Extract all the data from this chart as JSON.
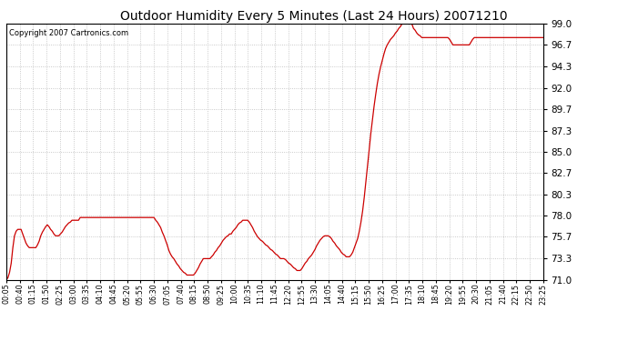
{
  "title": "Outdoor Humidity Every 5 Minutes (Last 24 Hours) 20071210",
  "copyright_text": "Copyright 2007 Cartronics.com",
  "line_color": "#cc0000",
  "background_color": "#ffffff",
  "grid_color": "#cccccc",
  "ylim": [
    71.0,
    99.0
  ],
  "yticks": [
    71.0,
    73.3,
    75.7,
    78.0,
    80.3,
    82.7,
    85.0,
    87.3,
    89.7,
    92.0,
    94.3,
    96.7,
    99.0
  ],
  "xtick_labels": [
    "00:05",
    "00:40",
    "01:15",
    "01:50",
    "02:25",
    "03:00",
    "03:35",
    "04:10",
    "04:45",
    "05:20",
    "05:55",
    "06:30",
    "07:05",
    "07:40",
    "08:15",
    "08:50",
    "09:25",
    "10:00",
    "10:35",
    "11:10",
    "11:45",
    "12:20",
    "12:55",
    "13:30",
    "14:05",
    "14:40",
    "15:15",
    "15:50",
    "16:25",
    "17:00",
    "17:35",
    "18:10",
    "18:45",
    "19:20",
    "19:55",
    "20:30",
    "21:05",
    "21:40",
    "22:15",
    "22:50",
    "23:25"
  ],
  "humidity": [
    71.0,
    71.2,
    71.8,
    72.8,
    74.5,
    75.8,
    76.3,
    76.5,
    76.5,
    76.5,
    76.0,
    75.5,
    75.0,
    74.7,
    74.5,
    74.5,
    74.5,
    74.5,
    74.5,
    74.8,
    75.2,
    75.8,
    76.2,
    76.5,
    76.8,
    77.0,
    76.8,
    76.5,
    76.3,
    76.0,
    75.8,
    75.8,
    75.8,
    76.0,
    76.2,
    76.5,
    76.8,
    77.0,
    77.2,
    77.3,
    77.5,
    77.5,
    77.5,
    77.5,
    77.5,
    77.8,
    77.8,
    77.8,
    77.8,
    77.8,
    77.8,
    77.8,
    77.8,
    77.8,
    77.8,
    77.8,
    77.8,
    77.8,
    77.8,
    77.8,
    77.8,
    77.8,
    77.8,
    77.8,
    77.8,
    77.8,
    77.8,
    77.8,
    77.8,
    77.8,
    77.8,
    77.8,
    77.8,
    77.8,
    77.8,
    77.8,
    77.8,
    77.8,
    77.8,
    77.8,
    77.8,
    77.8,
    77.8,
    77.8,
    77.8,
    77.8,
    77.8,
    77.8,
    77.8,
    77.8,
    77.8,
    77.5,
    77.3,
    77.0,
    76.7,
    76.2,
    75.8,
    75.3,
    74.8,
    74.2,
    73.8,
    73.5,
    73.3,
    73.0,
    72.7,
    72.5,
    72.2,
    72.0,
    71.8,
    71.7,
    71.5,
    71.5,
    71.5,
    71.5,
    71.5,
    71.7,
    72.0,
    72.3,
    72.7,
    73.0,
    73.3,
    73.3,
    73.3,
    73.3,
    73.3,
    73.5,
    73.7,
    74.0,
    74.2,
    74.5,
    74.7,
    75.0,
    75.3,
    75.5,
    75.7,
    75.8,
    76.0,
    76.0,
    76.3,
    76.5,
    76.7,
    77.0,
    77.2,
    77.3,
    77.5,
    77.5,
    77.5,
    77.5,
    77.3,
    77.0,
    76.7,
    76.3,
    76.0,
    75.7,
    75.5,
    75.3,
    75.2,
    75.0,
    74.8,
    74.7,
    74.5,
    74.3,
    74.2,
    74.0,
    73.8,
    73.7,
    73.5,
    73.3,
    73.3,
    73.3,
    73.2,
    73.0,
    72.8,
    72.7,
    72.5,
    72.3,
    72.2,
    72.0,
    72.0,
    72.0,
    72.2,
    72.5,
    72.8,
    73.0,
    73.3,
    73.5,
    73.7,
    74.0,
    74.3,
    74.7,
    75.0,
    75.3,
    75.5,
    75.7,
    75.8,
    75.8,
    75.8,
    75.7,
    75.5,
    75.2,
    75.0,
    74.7,
    74.5,
    74.3,
    74.0,
    73.8,
    73.7,
    73.5,
    73.5,
    73.5,
    73.7,
    74.0,
    74.5,
    75.0,
    75.5,
    76.3,
    77.3,
    78.5,
    80.0,
    81.7,
    83.5,
    85.2,
    87.0,
    88.5,
    90.0,
    91.3,
    92.5,
    93.5,
    94.3,
    95.0,
    95.7,
    96.3,
    96.7,
    97.0,
    97.3,
    97.5,
    97.7,
    98.0,
    98.2,
    98.5,
    98.7,
    99.0,
    99.0,
    99.0,
    99.0,
    99.0,
    99.0,
    99.0,
    98.5,
    98.3,
    98.0,
    97.8,
    97.7,
    97.5,
    97.5,
    97.5,
    97.5,
    97.5,
    97.5,
    97.5,
    97.5,
    97.5,
    97.5,
    97.5,
    97.5,
    97.5,
    97.5,
    97.5,
    97.5,
    97.5,
    97.3,
    97.0,
    96.7,
    96.7,
    96.7,
    96.7,
    96.7,
    96.7,
    96.7,
    96.7,
    96.7,
    96.7,
    96.7,
    97.0,
    97.3,
    97.5,
    97.5,
    97.5,
    97.5,
    97.5,
    97.5,
    97.5,
    97.5,
    97.5,
    97.5,
    97.5,
    97.5,
    97.5,
    97.5,
    97.5,
    97.5,
    97.5,
    97.5,
    97.5,
    97.5,
    97.5,
    97.5,
    97.5,
    97.5,
    97.5,
    97.5,
    97.5,
    97.5,
    97.5,
    97.5,
    97.5,
    97.5,
    97.5,
    97.5,
    97.5,
    97.5,
    97.5,
    97.5,
    97.5,
    97.5,
    97.5,
    97.5,
    97.5
  ]
}
